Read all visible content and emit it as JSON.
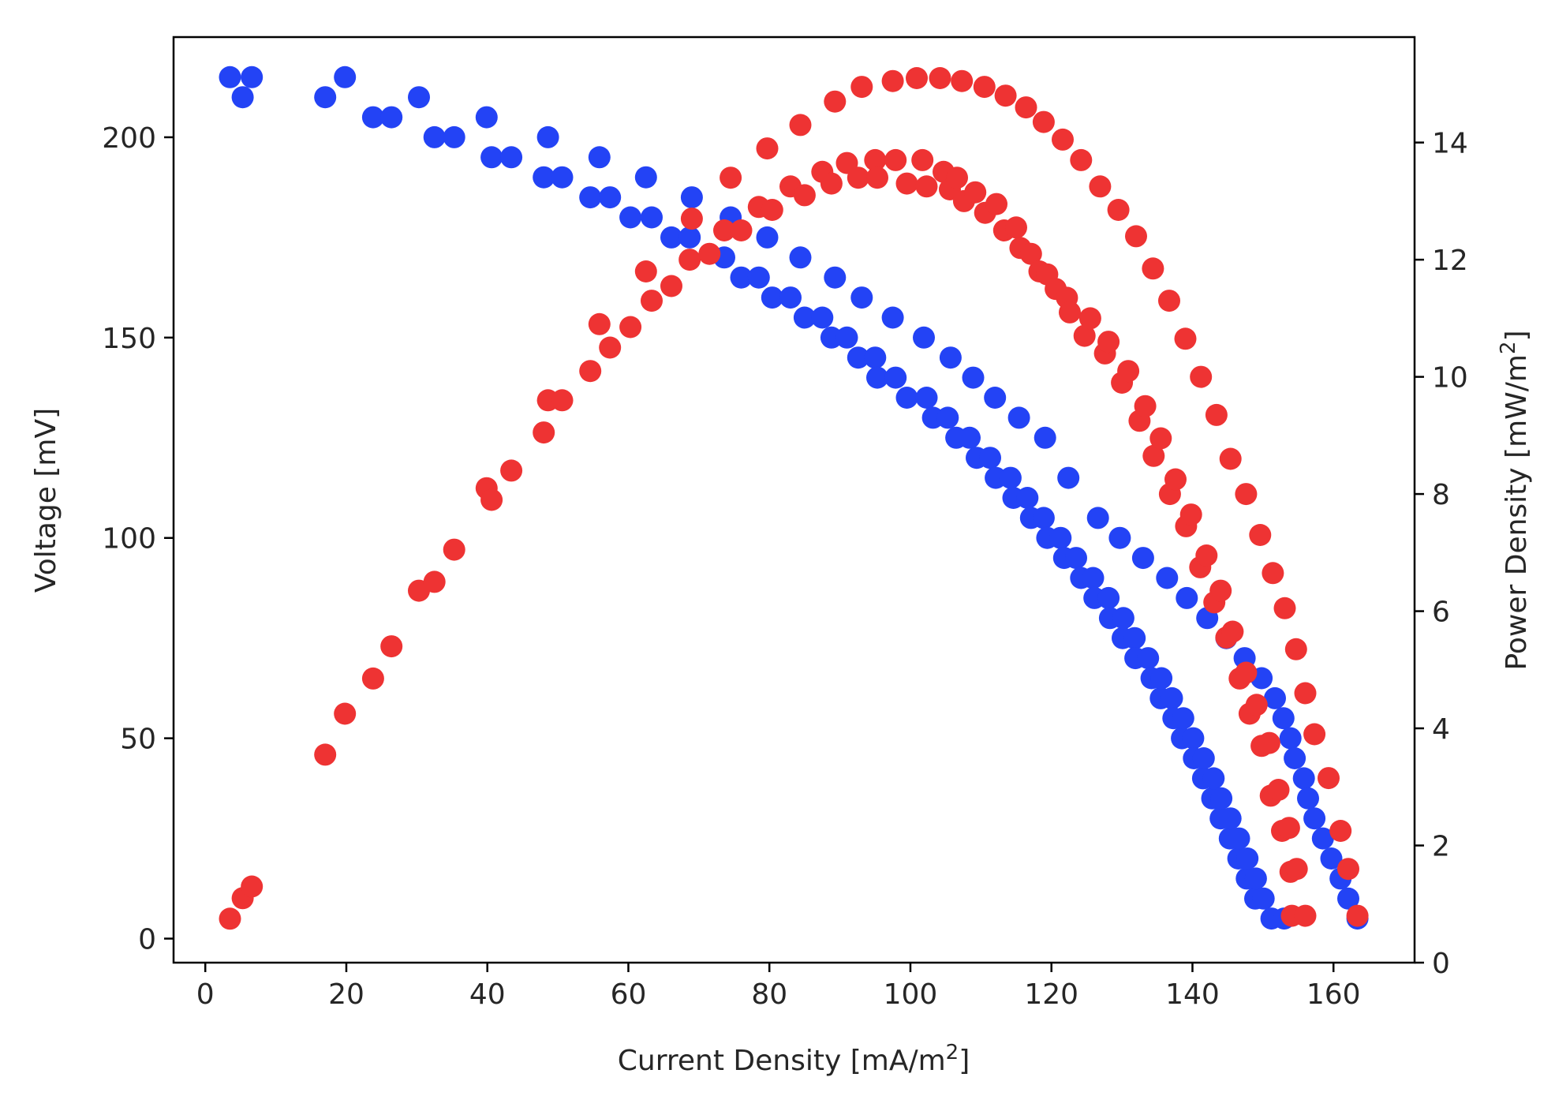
{
  "chart_data": {
    "type": "scatter",
    "title": "",
    "xlabel": {
      "text": "Current Density [mA/m",
      "sup": "2",
      "tail": "]"
    },
    "ylabel_left": "Voltage [mV]",
    "ylabel_right": {
      "text": "Power Density [mW/m",
      "sup": "2",
      "tail": "]"
    },
    "xlim": [
      -4.5,
      171.5
    ],
    "ylim_left": [
      -6,
      225
    ],
    "ylim_right": [
      0,
      15.8
    ],
    "xticks": [
      0,
      20,
      40,
      60,
      80,
      100,
      120,
      140,
      160
    ],
    "yticks_left": [
      0,
      50,
      100,
      150,
      200
    ],
    "yticks_right": [
      0,
      2,
      4,
      6,
      8,
      10,
      12,
      14
    ],
    "grid": false,
    "series": [
      {
        "name": "Voltage",
        "axis": "left",
        "color": "#2343f5",
        "points": [
          [
            3.5,
            215
          ],
          [
            5.3,
            210
          ],
          [
            6.6,
            215
          ],
          [
            17,
            210
          ],
          [
            19.8,
            215
          ],
          [
            23.8,
            205
          ],
          [
            26.4,
            205
          ],
          [
            30.3,
            210
          ],
          [
            32.5,
            200
          ],
          [
            35.3,
            200
          ],
          [
            39.9,
            205
          ],
          [
            40.6,
            195
          ],
          [
            43.4,
            195
          ],
          [
            48,
            190
          ],
          [
            48.6,
            200
          ],
          [
            50.6,
            190
          ],
          [
            54.6,
            185
          ],
          [
            55.9,
            195
          ],
          [
            57.4,
            185
          ],
          [
            60.3,
            180
          ],
          [
            62.5,
            190
          ],
          [
            63.3,
            180
          ],
          [
            66.1,
            175
          ],
          [
            68.7,
            175
          ],
          [
            69,
            185
          ],
          [
            73.6,
            170
          ],
          [
            74.5,
            180
          ],
          [
            76,
            165
          ],
          [
            78.5,
            165
          ],
          [
            79.7,
            175
          ],
          [
            80.4,
            160
          ],
          [
            83,
            160
          ],
          [
            84.4,
            170
          ],
          [
            85,
            155
          ],
          [
            87.5,
            155
          ],
          [
            88.8,
            150
          ],
          [
            89.3,
            165
          ],
          [
            91,
            150
          ],
          [
            92.6,
            145
          ],
          [
            93.1,
            160
          ],
          [
            95,
            145
          ],
          [
            95.3,
            140
          ],
          [
            97.5,
            155
          ],
          [
            97.9,
            140
          ],
          [
            99.5,
            135
          ],
          [
            101.9,
            150
          ],
          [
            102.3,
            135
          ],
          [
            103.2,
            130
          ],
          [
            105.3,
            130
          ],
          [
            105.7,
            145
          ],
          [
            106.5,
            125
          ],
          [
            108.4,
            125
          ],
          [
            108.9,
            140
          ],
          [
            109.4,
            120
          ],
          [
            111.3,
            120
          ],
          [
            112,
            135
          ],
          [
            112.1,
            115
          ],
          [
            114.2,
            115
          ],
          [
            114.6,
            110
          ],
          [
            115.4,
            130
          ],
          [
            116.6,
            110
          ],
          [
            117.1,
            105
          ],
          [
            118.9,
            105
          ],
          [
            119.1,
            125
          ],
          [
            119.4,
            100
          ],
          [
            121.3,
            100
          ],
          [
            121.8,
            95
          ],
          [
            122.4,
            115
          ],
          [
            123.5,
            95
          ],
          [
            124.2,
            90
          ],
          [
            125.9,
            90
          ],
          [
            126.1,
            85
          ],
          [
            126.6,
            105
          ],
          [
            128.1,
            85
          ],
          [
            128.3,
            80
          ],
          [
            129.7,
            100
          ],
          [
            130.1,
            75
          ],
          [
            130.2,
            80
          ],
          [
            131.8,
            75
          ],
          [
            131.9,
            70
          ],
          [
            133,
            95
          ],
          [
            133.7,
            70
          ],
          [
            134.2,
            65
          ],
          [
            135.5,
            60
          ],
          [
            135.6,
            65
          ],
          [
            136.4,
            90
          ],
          [
            137.1,
            60
          ],
          [
            137.3,
            55
          ],
          [
            138.5,
            50
          ],
          [
            138.7,
            55
          ],
          [
            139.2,
            85
          ],
          [
            140.1,
            50
          ],
          [
            140.2,
            45
          ],
          [
            141.5,
            40
          ],
          [
            141.6,
            45
          ],
          [
            142.1,
            80
          ],
          [
            142.8,
            35
          ],
          [
            143,
            40
          ],
          [
            144,
            30
          ],
          [
            144.1,
            35
          ],
          [
            144.8,
            75
          ],
          [
            145.3,
            25
          ],
          [
            145.4,
            30
          ],
          [
            146.5,
            20
          ],
          [
            146.6,
            25
          ],
          [
            147.4,
            70
          ],
          [
            147.7,
            15
          ],
          [
            147.8,
            20
          ],
          [
            148.9,
            10
          ],
          [
            149,
            15
          ],
          [
            149.8,
            65
          ],
          [
            150.1,
            10
          ],
          [
            151.2,
            5
          ],
          [
            151.7,
            60
          ],
          [
            152.9,
            55
          ],
          [
            153,
            5
          ],
          [
            153.9,
            50
          ],
          [
            154.5,
            45
          ],
          [
            155.8,
            40
          ],
          [
            156.4,
            35
          ],
          [
            157.3,
            30
          ],
          [
            158.5,
            25
          ],
          [
            159.7,
            20
          ],
          [
            161,
            15
          ],
          [
            162.1,
            10
          ],
          [
            163.4,
            5
          ]
        ]
      },
      {
        "name": "Power Density",
        "axis": "right",
        "color": "#ee3333",
        "points": [
          [
            3.5,
            0.75
          ],
          [
            5.3,
            1.1
          ],
          [
            6.6,
            1.3
          ],
          [
            17,
            3.55
          ],
          [
            19.8,
            4.25
          ],
          [
            23.8,
            4.85
          ],
          [
            26.4,
            5.4
          ],
          [
            30.3,
            6.35
          ],
          [
            32.5,
            6.5
          ],
          [
            35.3,
            7.05
          ],
          [
            39.9,
            8.1
          ],
          [
            40.6,
            7.9
          ],
          [
            43.4,
            8.4
          ],
          [
            48,
            9.05
          ],
          [
            48.6,
            9.6
          ],
          [
            50.6,
            9.6
          ],
          [
            54.6,
            10.1
          ],
          [
            55.9,
            10.9
          ],
          [
            57.4,
            10.5
          ],
          [
            60.3,
            10.85
          ],
          [
            62.5,
            11.8
          ],
          [
            63.3,
            11.3
          ],
          [
            66.1,
            11.55
          ],
          [
            68.7,
            12.0
          ],
          [
            69,
            12.7
          ],
          [
            71.5,
            12.1
          ],
          [
            73.6,
            12.5
          ],
          [
            74.5,
            13.4
          ],
          [
            76,
            12.5
          ],
          [
            78.5,
            12.9
          ],
          [
            79.7,
            13.9
          ],
          [
            80.4,
            12.85
          ],
          [
            83,
            13.25
          ],
          [
            84.4,
            14.3
          ],
          [
            85,
            13.1
          ],
          [
            87.5,
            13.5
          ],
          [
            88.8,
            13.3
          ],
          [
            89.3,
            14.7
          ],
          [
            91,
            13.65
          ],
          [
            92.6,
            13.4
          ],
          [
            93.1,
            14.95
          ],
          [
            95,
            13.7
          ],
          [
            95.3,
            13.4
          ],
          [
            97.5,
            15.05
          ],
          [
            97.9,
            13.7
          ],
          [
            99.5,
            13.3
          ],
          [
            100.9,
            15.1
          ],
          [
            101.7,
            13.7
          ],
          [
            102.3,
            13.25
          ],
          [
            104.2,
            15.1
          ],
          [
            104.7,
            13.5
          ],
          [
            105.6,
            13.2
          ],
          [
            106.6,
            13.4
          ],
          [
            107.3,
            15.05
          ],
          [
            107.6,
            13.0
          ],
          [
            109.2,
            13.15
          ],
          [
            110.5,
            14.95
          ],
          [
            110.6,
            12.8
          ],
          [
            112.2,
            12.95
          ],
          [
            113.5,
            14.8
          ],
          [
            113.3,
            12.5
          ],
          [
            115,
            12.55
          ],
          [
            115.6,
            12.2
          ],
          [
            116.4,
            14.6
          ],
          [
            117.1,
            12.1
          ],
          [
            118.3,
            11.8
          ],
          [
            118.9,
            14.35
          ],
          [
            119.4,
            11.75
          ],
          [
            120.6,
            11.5
          ],
          [
            121.6,
            14.05
          ],
          [
            122.2,
            11.35
          ],
          [
            122.6,
            11.1
          ],
          [
            124.2,
            13.7
          ],
          [
            124.7,
            10.7
          ],
          [
            125.5,
            11.0
          ],
          [
            126.9,
            13.25
          ],
          [
            127.6,
            10.4
          ],
          [
            128.1,
            10.6
          ],
          [
            129.5,
            12.85
          ],
          [
            130,
            9.9
          ],
          [
            130.9,
            10.1
          ],
          [
            132,
            12.4
          ],
          [
            132.5,
            9.25
          ],
          [
            133.3,
            9.5
          ],
          [
            134.4,
            11.85
          ],
          [
            134.5,
            8.65
          ],
          [
            135.5,
            8.95
          ],
          [
            136.7,
            11.3
          ],
          [
            136.8,
            8.0
          ],
          [
            137.6,
            8.25
          ],
          [
            139,
            10.65
          ],
          [
            139.1,
            7.45
          ],
          [
            139.8,
            7.65
          ],
          [
            141.2,
            10.0
          ],
          [
            141.1,
            6.75
          ],
          [
            142,
            6.95
          ],
          [
            143.4,
            9.35
          ],
          [
            143.1,
            6.15
          ],
          [
            144,
            6.35
          ],
          [
            145.4,
            8.6
          ],
          [
            144.8,
            5.55
          ],
          [
            145.7,
            5.65
          ],
          [
            147.6,
            8.0
          ],
          [
            146.7,
            4.85
          ],
          [
            147.6,
            4.95
          ],
          [
            149.6,
            7.3
          ],
          [
            148.1,
            4.25
          ],
          [
            149.1,
            4.4
          ],
          [
            151.4,
            6.65
          ],
          [
            149.8,
            3.7
          ],
          [
            150.9,
            3.75
          ],
          [
            153.1,
            6.05
          ],
          [
            151.1,
            2.85
          ],
          [
            152.2,
            2.95
          ],
          [
            154.7,
            5.35
          ],
          [
            152.7,
            2.25
          ],
          [
            153.7,
            2.3
          ],
          [
            156,
            4.6
          ],
          [
            153.9,
            1.55
          ],
          [
            154.8,
            1.6
          ],
          [
            157.3,
            3.9
          ],
          [
            154.1,
            0.8
          ],
          [
            156,
            0.8
          ],
          [
            159.3,
            3.15
          ],
          [
            161,
            2.25
          ],
          [
            162.1,
            1.6
          ],
          [
            163.4,
            0.8
          ]
        ]
      }
    ]
  }
}
